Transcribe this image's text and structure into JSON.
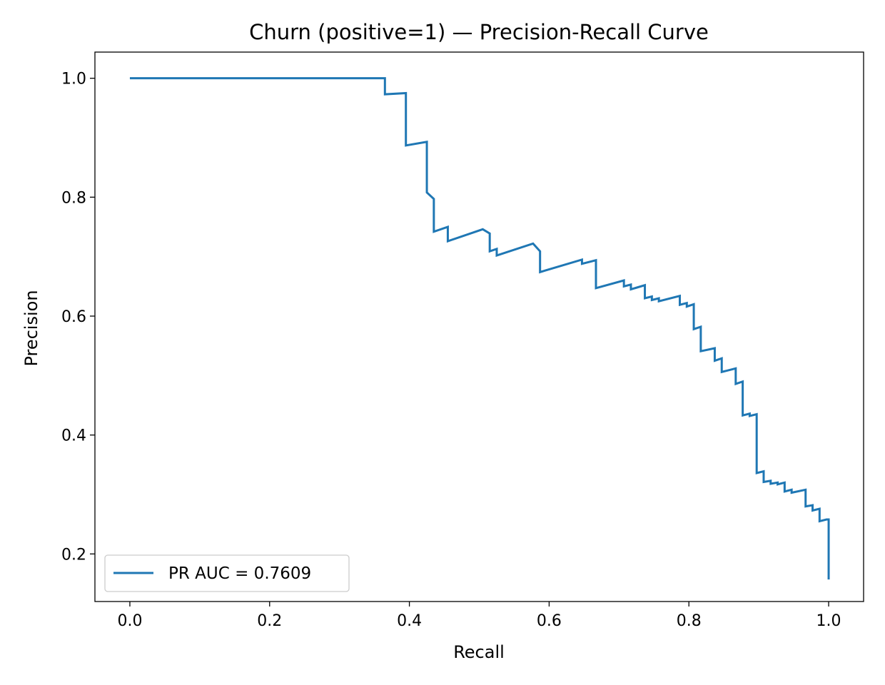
{
  "chart_data": {
    "type": "line",
    "title": "Churn (positive=1) — Precision-Recall Curve",
    "xlabel": "Recall",
    "ylabel": "Precision",
    "xlim": [
      -0.05,
      1.05
    ],
    "ylim": [
      0.12,
      1.044
    ],
    "xticks": [
      0.0,
      0.2,
      0.4,
      0.6,
      0.8,
      1.0
    ],
    "xtick_labels": [
      "0.0",
      "0.2",
      "0.4",
      "0.6",
      "0.8",
      "1.0"
    ],
    "yticks": [
      0.2,
      0.4,
      0.6,
      0.8,
      1.0
    ],
    "ytick_labels": [
      "0.2",
      "0.4",
      "0.6",
      "0.8",
      "1.0"
    ],
    "grid": false,
    "legend_position": "lower-left",
    "series": [
      {
        "name": "PR AUC = 0.7609",
        "color": "#1f77b4",
        "drawstyle": "steps",
        "points": [
          [
            0.0,
            1.0
          ],
          [
            0.365,
            1.0
          ],
          [
            0.365,
            0.973
          ],
          [
            0.395,
            0.975
          ],
          [
            0.395,
            0.887
          ],
          [
            0.425,
            0.893
          ],
          [
            0.425,
            0.808
          ],
          [
            0.435,
            0.797
          ],
          [
            0.435,
            0.742
          ],
          [
            0.455,
            0.75
          ],
          [
            0.455,
            0.726
          ],
          [
            0.505,
            0.746
          ],
          [
            0.515,
            0.739
          ],
          [
            0.515,
            0.709
          ],
          [
            0.525,
            0.713
          ],
          [
            0.525,
            0.702
          ],
          [
            0.577,
            0.722
          ],
          [
            0.587,
            0.709
          ],
          [
            0.587,
            0.674
          ],
          [
            0.647,
            0.695
          ],
          [
            0.647,
            0.688
          ],
          [
            0.667,
            0.694
          ],
          [
            0.667,
            0.647
          ],
          [
            0.707,
            0.66
          ],
          [
            0.707,
            0.65
          ],
          [
            0.717,
            0.653
          ],
          [
            0.717,
            0.645
          ],
          [
            0.737,
            0.652
          ],
          [
            0.737,
            0.63
          ],
          [
            0.747,
            0.633
          ],
          [
            0.747,
            0.627
          ],
          [
            0.757,
            0.63
          ],
          [
            0.757,
            0.625
          ],
          [
            0.787,
            0.634
          ],
          [
            0.787,
            0.619
          ],
          [
            0.797,
            0.622
          ],
          [
            0.797,
            0.616
          ],
          [
            0.807,
            0.62
          ],
          [
            0.807,
            0.578
          ],
          [
            0.817,
            0.582
          ],
          [
            0.817,
            0.541
          ],
          [
            0.837,
            0.546
          ],
          [
            0.837,
            0.525
          ],
          [
            0.847,
            0.529
          ],
          [
            0.847,
            0.506
          ],
          [
            0.867,
            0.512
          ],
          [
            0.867,
            0.486
          ],
          [
            0.877,
            0.49
          ],
          [
            0.877,
            0.433
          ],
          [
            0.887,
            0.436
          ],
          [
            0.887,
            0.432
          ],
          [
            0.897,
            0.435
          ],
          [
            0.897,
            0.336
          ],
          [
            0.907,
            0.339
          ],
          [
            0.907,
            0.321
          ],
          [
            0.917,
            0.323
          ],
          [
            0.917,
            0.318
          ],
          [
            0.927,
            0.32
          ],
          [
            0.927,
            0.317
          ],
          [
            0.937,
            0.32
          ],
          [
            0.937,
            0.305
          ],
          [
            0.947,
            0.308
          ],
          [
            0.947,
            0.303
          ],
          [
            0.967,
            0.308
          ],
          [
            0.967,
            0.28
          ],
          [
            0.977,
            0.282
          ],
          [
            0.977,
            0.273
          ],
          [
            0.987,
            0.276
          ],
          [
            0.987,
            0.255
          ],
          [
            0.997,
            0.258
          ],
          [
            1.0,
            0.258
          ],
          [
            1.0,
            0.157
          ]
        ]
      }
    ]
  }
}
